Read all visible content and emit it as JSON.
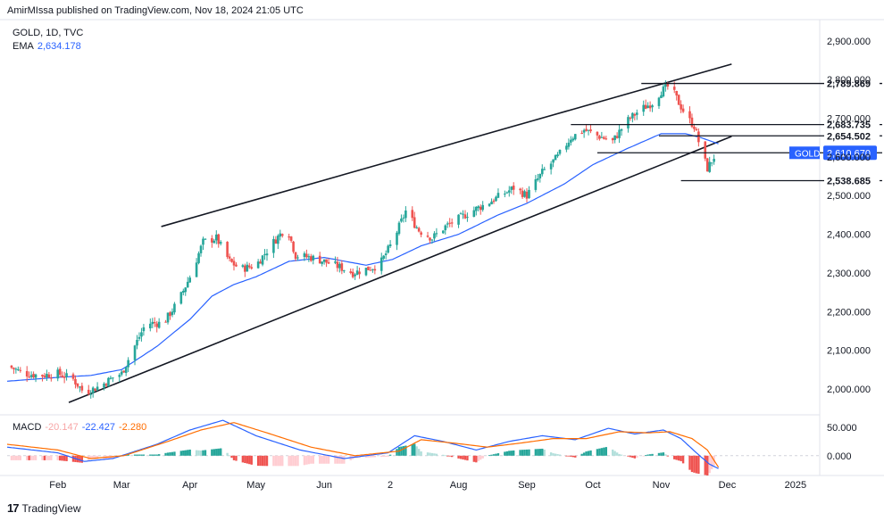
{
  "header": {
    "text": "AmirMIssa published on TradingView.com, Nov 18, 2024 21:05 UTC"
  },
  "legend": {
    "symbol": "GOLD, 1D, TVC",
    "ema_label": "EMA",
    "ema_value": "2,634.178"
  },
  "macd_legend": {
    "label": "MACD",
    "v1": "-20.147",
    "v2": "-22.427",
    "v3": "-2.280"
  },
  "footer": {
    "logo": "17",
    "brand": "TradingView"
  },
  "colors": {
    "up": "#26a69a",
    "down": "#ef5350",
    "ema": "#2962ff",
    "macd": "#2962ff",
    "signal": "#ff6d00",
    "gold_badge": "#2962ff"
  },
  "chart_data": [
    {
      "type": "candlestick",
      "title": "GOLD, 1D, TVC",
      "x_ticks": [
        "Feb",
        "Mar",
        "Apr",
        "May",
        "Jun",
        "2",
        "Aug",
        "Sep",
        "Oct",
        "Nov",
        "Dec",
        "2025"
      ],
      "x_tick_day": [
        0,
        29,
        60,
        90,
        121,
        151,
        182,
        213,
        243,
        274,
        304,
        335
      ],
      "x_range_days": [
        -23,
        346
      ],
      "y_ticks": [
        "2,000.000",
        "2,100.000",
        "2,200.000",
        "2,300.000",
        "2,400.000",
        "2,500.000",
        "2,600.000",
        "2,700.000",
        "2,800.000",
        "2,900.000"
      ],
      "y_tick_values": [
        2000,
        2100,
        2200,
        2300,
        2400,
        2500,
        2600,
        2700,
        2800,
        2900
      ],
      "ylim": [
        1940,
        2955
      ],
      "grid": false,
      "price_keypoints": [
        [
          -23,
          2060
        ],
        [
          -15,
          2040
        ],
        [
          -8,
          2035
        ],
        [
          0,
          2040
        ],
        [
          7,
          2025
        ],
        [
          12,
          1990
        ],
        [
          20,
          2010
        ],
        [
          25,
          2030
        ],
        [
          29,
          2040
        ],
        [
          34,
          2100
        ],
        [
          40,
          2170
        ],
        [
          48,
          2170
        ],
        [
          55,
          2230
        ],
        [
          60,
          2290
        ],
        [
          66,
          2380
        ],
        [
          72,
          2390
        ],
        [
          78,
          2330
        ],
        [
          83,
          2310
        ],
        [
          90,
          2320
        ],
        [
          98,
          2380
        ],
        [
          104,
          2420
        ],
        [
          108,
          2345
        ],
        [
          115,
          2340
        ],
        [
          121,
          2330
        ],
        [
          128,
          2315
        ],
        [
          134,
          2300
        ],
        [
          140,
          2310
        ],
        [
          146,
          2320
        ],
        [
          152,
          2380
        ],
        [
          158,
          2460
        ],
        [
          164,
          2410
        ],
        [
          170,
          2390
        ],
        [
          176,
          2420
        ],
        [
          182,
          2440
        ],
        [
          188,
          2460
        ],
        [
          195,
          2480
        ],
        [
          201,
          2500
        ],
        [
          207,
          2520
        ],
        [
          213,
          2500
        ],
        [
          220,
          2560
        ],
        [
          227,
          2600
        ],
        [
          233,
          2650
        ],
        [
          239,
          2670
        ],
        [
          245,
          2655
        ],
        [
          252,
          2640
        ],
        [
          258,
          2690
        ],
        [
          264,
          2720
        ],
        [
          270,
          2740
        ],
        [
          274,
          2770
        ],
        [
          278,
          2785
        ],
        [
          282,
          2740
        ],
        [
          286,
          2700
        ],
        [
          289,
          2680
        ],
        [
          292,
          2620
        ],
        [
          295,
          2570
        ],
        [
          298,
          2600
        ],
        [
          300,
          2611
        ]
      ],
      "ema_keypoints": [
        [
          -23,
          2020
        ],
        [
          0,
          2030
        ],
        [
          15,
          2035
        ],
        [
          29,
          2050
        ],
        [
          45,
          2110
        ],
        [
          60,
          2180
        ],
        [
          70,
          2240
        ],
        [
          80,
          2270
        ],
        [
          90,
          2290
        ],
        [
          105,
          2330
        ],
        [
          121,
          2340
        ],
        [
          140,
          2320
        ],
        [
          152,
          2335
        ],
        [
          165,
          2370
        ],
        [
          182,
          2400
        ],
        [
          200,
          2450
        ],
        [
          213,
          2480
        ],
        [
          230,
          2530
        ],
        [
          243,
          2580
        ],
        [
          258,
          2620
        ],
        [
          274,
          2660
        ],
        [
          285,
          2660
        ],
        [
          292,
          2650
        ],
        [
          300,
          2634
        ]
      ],
      "trendlines": [
        {
          "from": [
            47,
            2420
          ],
          "to": [
            306,
            2840
          ]
        },
        {
          "from": [
            5,
            1965
          ],
          "to": [
            306,
            2653
          ]
        }
      ],
      "levels": [
        {
          "label": "2,789.869",
          "value": 2789.869,
          "from_day": 265
        },
        {
          "label": "2,683.735",
          "value": 2683.735,
          "from_day": 233
        },
        {
          "label": "2,654.502",
          "value": 2654.502,
          "from_day": 273
        },
        {
          "label": "2,610.670",
          "value": 2610.67,
          "from_day": 245
        },
        {
          "label": "2,538.685",
          "value": 2538.685,
          "from_day": 283
        }
      ],
      "current_price": {
        "symbol": "GOLD",
        "label": "2,610.670",
        "value": 2610.67
      }
    },
    {
      "type": "line",
      "title": "MACD",
      "ylim": [
        -30,
        70
      ],
      "y_ticks": [
        "50.000",
        "0.000"
      ],
      "y_tick_values": [
        50,
        0
      ],
      "zero_line": 0,
      "series": [
        {
          "name": "MACD",
          "keypoints": [
            [
              -23,
              15
            ],
            [
              0,
              5
            ],
            [
              12,
              -10
            ],
            [
              25,
              -5
            ],
            [
              45,
              20
            ],
            [
              60,
              45
            ],
            [
              75,
              62
            ],
            [
              90,
              35
            ],
            [
              110,
              10
            ],
            [
              130,
              -5
            ],
            [
              150,
              5
            ],
            [
              162,
              35
            ],
            [
              175,
              25
            ],
            [
              190,
              10
            ],
            [
              205,
              25
            ],
            [
              220,
              35
            ],
            [
              235,
              28
            ],
            [
              250,
              48
            ],
            [
              262,
              38
            ],
            [
              275,
              45
            ],
            [
              283,
              30
            ],
            [
              290,
              5
            ],
            [
              296,
              -15
            ],
            [
              300,
              -22.427
            ]
          ]
        },
        {
          "name": "Signal",
          "keypoints": [
            [
              -23,
              20
            ],
            [
              0,
              10
            ],
            [
              15,
              -5
            ],
            [
              30,
              0
            ],
            [
              50,
              25
            ],
            [
              65,
              45
            ],
            [
              80,
              58
            ],
            [
              95,
              40
            ],
            [
              115,
              15
            ],
            [
              135,
              0
            ],
            [
              155,
              8
            ],
            [
              165,
              28
            ],
            [
              180,
              22
            ],
            [
              195,
              15
            ],
            [
              210,
              22
            ],
            [
              225,
              30
            ],
            [
              240,
              30
            ],
            [
              255,
              42
            ],
            [
              268,
              40
            ],
            [
              278,
              42
            ],
            [
              288,
              30
            ],
            [
              295,
              10
            ],
            [
              300,
              -20.147
            ]
          ]
        }
      ]
    }
  ]
}
